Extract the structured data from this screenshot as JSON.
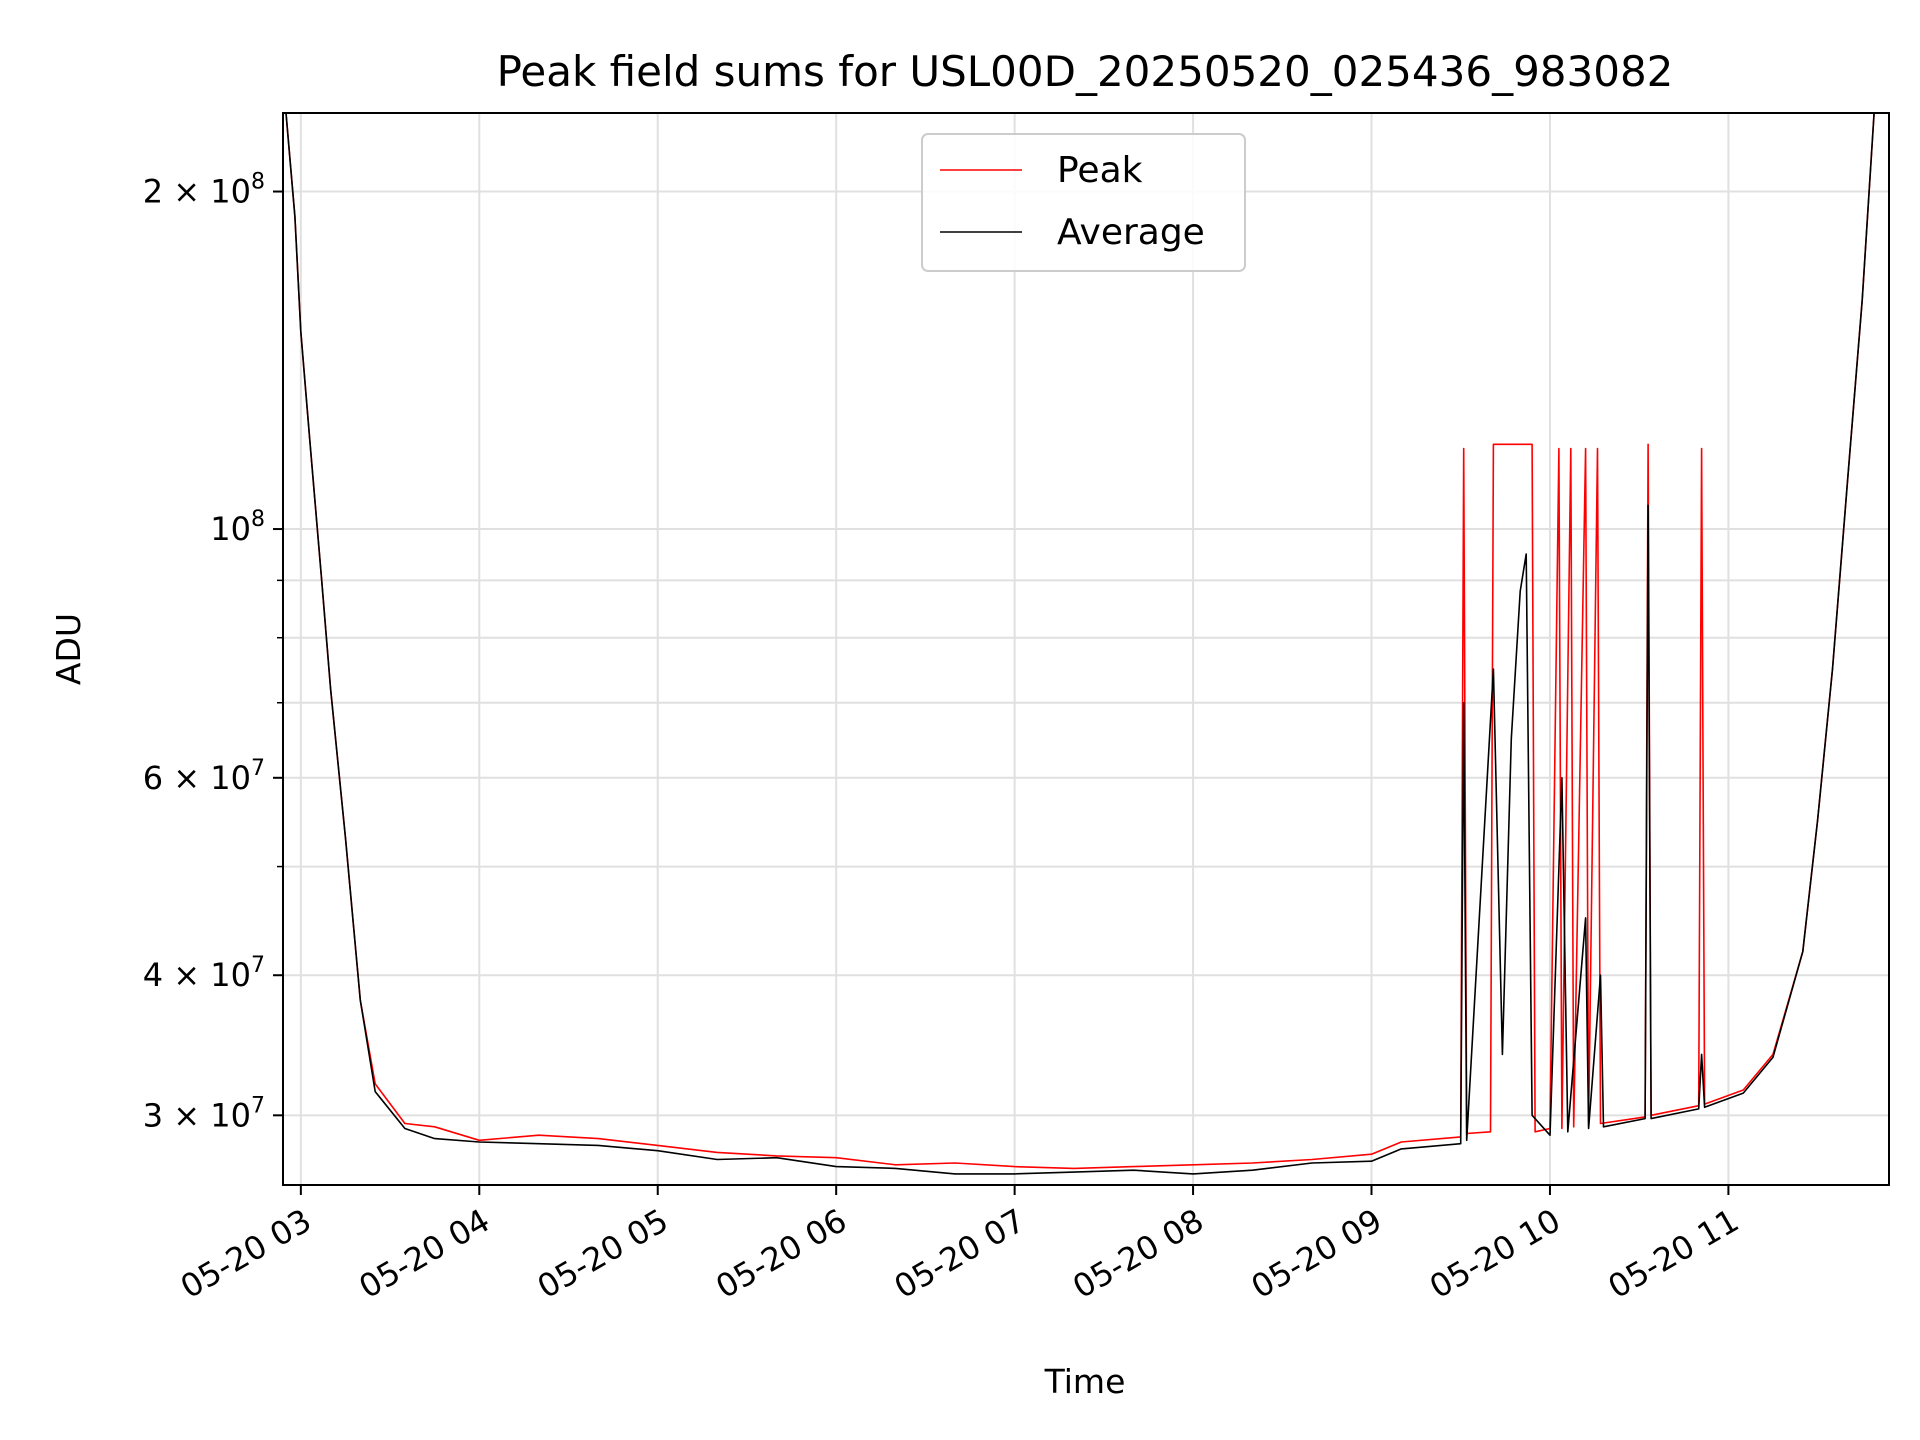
{
  "chart_data": {
    "type": "line",
    "title": "Peak field sums for USL00D_20250520_025436_983082",
    "xlabel": "Time",
    "ylabel": "ADU",
    "y_scale": "log",
    "xlim": [
      "2025-05-20 02:54",
      "2025-05-20 11:54"
    ],
    "ylim": [
      26000000,
      235000000
    ],
    "grid": true,
    "legend_position": "top-center",
    "x_tick_labels": [
      "05-20 03",
      "05-20 04",
      "05-20 05",
      "05-20 06",
      "05-20 07",
      "05-20 08",
      "05-20 09",
      "05-20 10",
      "05-20 11"
    ],
    "y_tick_labels": [
      {
        "value": 200000000,
        "mantissa": "2",
        "exp": "8"
      },
      {
        "value": 100000000,
        "mantissa": "",
        "exp": "8"
      },
      {
        "value": 60000000,
        "mantissa": "6",
        "exp": "7"
      },
      {
        "value": 40000000,
        "mantissa": "4",
        "exp": "7"
      },
      {
        "value": 30000000,
        "mantissa": "3",
        "exp": "7"
      }
    ],
    "series": [
      {
        "name": "Peak",
        "color": "#ff0000",
        "points": [
          [
            "2025-05-20 02:55",
            235000000
          ],
          [
            "2025-05-20 02:58",
            190000000
          ],
          [
            "2025-05-20 03:00",
            150000000
          ],
          [
            "2025-05-20 03:03",
            120000000
          ],
          [
            "2025-05-20 03:07",
            90000000
          ],
          [
            "2025-05-20 03:10",
            72000000
          ],
          [
            "2025-05-20 03:15",
            53000000
          ],
          [
            "2025-05-20 03:20",
            38000000
          ],
          [
            "2025-05-20 03:25",
            32000000
          ],
          [
            "2025-05-20 03:35",
            29500000
          ],
          [
            "2025-05-20 03:45",
            29300000
          ],
          [
            "2025-05-20 04:00",
            28500000
          ],
          [
            "2025-05-20 04:20",
            28800000
          ],
          [
            "2025-05-20 04:40",
            28600000
          ],
          [
            "2025-05-20 05:00",
            28200000
          ],
          [
            "2025-05-20 05:20",
            27800000
          ],
          [
            "2025-05-20 05:40",
            27600000
          ],
          [
            "2025-05-20 06:00",
            27500000
          ],
          [
            "2025-05-20 06:20",
            27100000
          ],
          [
            "2025-05-20 06:40",
            27200000
          ],
          [
            "2025-05-20 07:00",
            27000000
          ],
          [
            "2025-05-20 07:20",
            26900000
          ],
          [
            "2025-05-20 07:40",
            27000000
          ],
          [
            "2025-05-20 08:00",
            27100000
          ],
          [
            "2025-05-20 08:20",
            27200000
          ],
          [
            "2025-05-20 08:40",
            27400000
          ],
          [
            "2025-05-20 09:00",
            27700000
          ],
          [
            "2025-05-20 09:10",
            28400000
          ],
          [
            "2025-05-20 09:30",
            28700000
          ],
          [
            "2025-05-20 09:31",
            118000000
          ],
          [
            "2025-05-20 09:32",
            28900000
          ],
          [
            "2025-05-20 09:40",
            29000000
          ],
          [
            "2025-05-20 09:41",
            119000000
          ],
          [
            "2025-05-20 09:54",
            119000000
          ],
          [
            "2025-05-20 09:55",
            29000000
          ],
          [
            "2025-05-20 10:00",
            29200000
          ],
          [
            "2025-05-20 10:03",
            118000000
          ],
          [
            "2025-05-20 10:04",
            29200000
          ],
          [
            "2025-05-20 10:07",
            118000000
          ],
          [
            "2025-05-20 10:08",
            29300000
          ],
          [
            "2025-05-20 10:12",
            118000000
          ],
          [
            "2025-05-20 10:13",
            29400000
          ],
          [
            "2025-05-20 10:16",
            118000000
          ],
          [
            "2025-05-20 10:17",
            29500000
          ],
          [
            "2025-05-20 10:32",
            29900000
          ],
          [
            "2025-05-20 10:33",
            119000000
          ],
          [
            "2025-05-20 10:34",
            30000000
          ],
          [
            "2025-05-20 10:50",
            30600000
          ],
          [
            "2025-05-20 10:51",
            118000000
          ],
          [
            "2025-05-20 10:52",
            30700000
          ],
          [
            "2025-05-20 11:05",
            31600000
          ],
          [
            "2025-05-20 11:15",
            34000000
          ],
          [
            "2025-05-20 11:25",
            42000000
          ],
          [
            "2025-05-20 11:30",
            55000000
          ],
          [
            "2025-05-20 11:35",
            75000000
          ],
          [
            "2025-05-20 11:40",
            110000000
          ],
          [
            "2025-05-20 11:45",
            160000000
          ],
          [
            "2025-05-20 11:49",
            235000000
          ]
        ]
      },
      {
        "name": "Average",
        "color": "#000000",
        "points": [
          [
            "2025-05-20 02:55",
            235000000
          ],
          [
            "2025-05-20 02:58",
            190000000
          ],
          [
            "2025-05-20 03:00",
            150000000
          ],
          [
            "2025-05-20 03:03",
            120000000
          ],
          [
            "2025-05-20 03:07",
            90000000
          ],
          [
            "2025-05-20 03:10",
            72000000
          ],
          [
            "2025-05-20 03:15",
            53000000
          ],
          [
            "2025-05-20 03:20",
            38000000
          ],
          [
            "2025-05-20 03:25",
            31500000
          ],
          [
            "2025-05-20 03:35",
            29200000
          ],
          [
            "2025-05-20 03:45",
            28600000
          ],
          [
            "2025-05-20 04:00",
            28400000
          ],
          [
            "2025-05-20 04:20",
            28300000
          ],
          [
            "2025-05-20 04:40",
            28200000
          ],
          [
            "2025-05-20 05:00",
            27900000
          ],
          [
            "2025-05-20 05:20",
            27400000
          ],
          [
            "2025-05-20 05:40",
            27500000
          ],
          [
            "2025-05-20 06:00",
            27000000
          ],
          [
            "2025-05-20 06:20",
            26900000
          ],
          [
            "2025-05-20 06:40",
            26600000
          ],
          [
            "2025-05-20 07:00",
            26600000
          ],
          [
            "2025-05-20 07:20",
            26700000
          ],
          [
            "2025-05-20 07:40",
            26800000
          ],
          [
            "2025-05-20 08:00",
            26600000
          ],
          [
            "2025-05-20 08:20",
            26800000
          ],
          [
            "2025-05-20 08:40",
            27200000
          ],
          [
            "2025-05-20 09:00",
            27300000
          ],
          [
            "2025-05-20 09:10",
            28000000
          ],
          [
            "2025-05-20 09:30",
            28300000
          ],
          [
            "2025-05-20 09:31",
            70000000
          ],
          [
            "2025-05-20 09:32",
            28500000
          ],
          [
            "2025-05-20 09:41",
            75000000
          ],
          [
            "2025-05-20 09:44",
            34000000
          ],
          [
            "2025-05-20 09:47",
            65000000
          ],
          [
            "2025-05-20 09:50",
            88000000
          ],
          [
            "2025-05-20 09:52",
            95000000
          ],
          [
            "2025-05-20 09:54",
            30000000
          ],
          [
            "2025-05-20 10:00",
            28800000
          ],
          [
            "2025-05-20 10:04",
            60000000
          ],
          [
            "2025-05-20 10:06",
            29000000
          ],
          [
            "2025-05-20 10:12",
            45000000
          ],
          [
            "2025-05-20 10:13",
            29200000
          ],
          [
            "2025-05-20 10:17",
            40000000
          ],
          [
            "2025-05-20 10:18",
            29300000
          ],
          [
            "2025-05-20 10:32",
            29800000
          ],
          [
            "2025-05-20 10:33",
            105000000
          ],
          [
            "2025-05-20 10:34",
            29800000
          ],
          [
            "2025-05-20 10:50",
            30400000
          ],
          [
            "2025-05-20 10:51",
            34000000
          ],
          [
            "2025-05-20 10:52",
            30500000
          ],
          [
            "2025-05-20 11:05",
            31400000
          ],
          [
            "2025-05-20 11:15",
            33800000
          ],
          [
            "2025-05-20 11:25",
            42000000
          ],
          [
            "2025-05-20 11:30",
            55000000
          ],
          [
            "2025-05-20 11:35",
            75000000
          ],
          [
            "2025-05-20 11:40",
            110000000
          ],
          [
            "2025-05-20 11:45",
            160000000
          ],
          [
            "2025-05-20 11:49",
            235000000
          ]
        ]
      }
    ]
  }
}
